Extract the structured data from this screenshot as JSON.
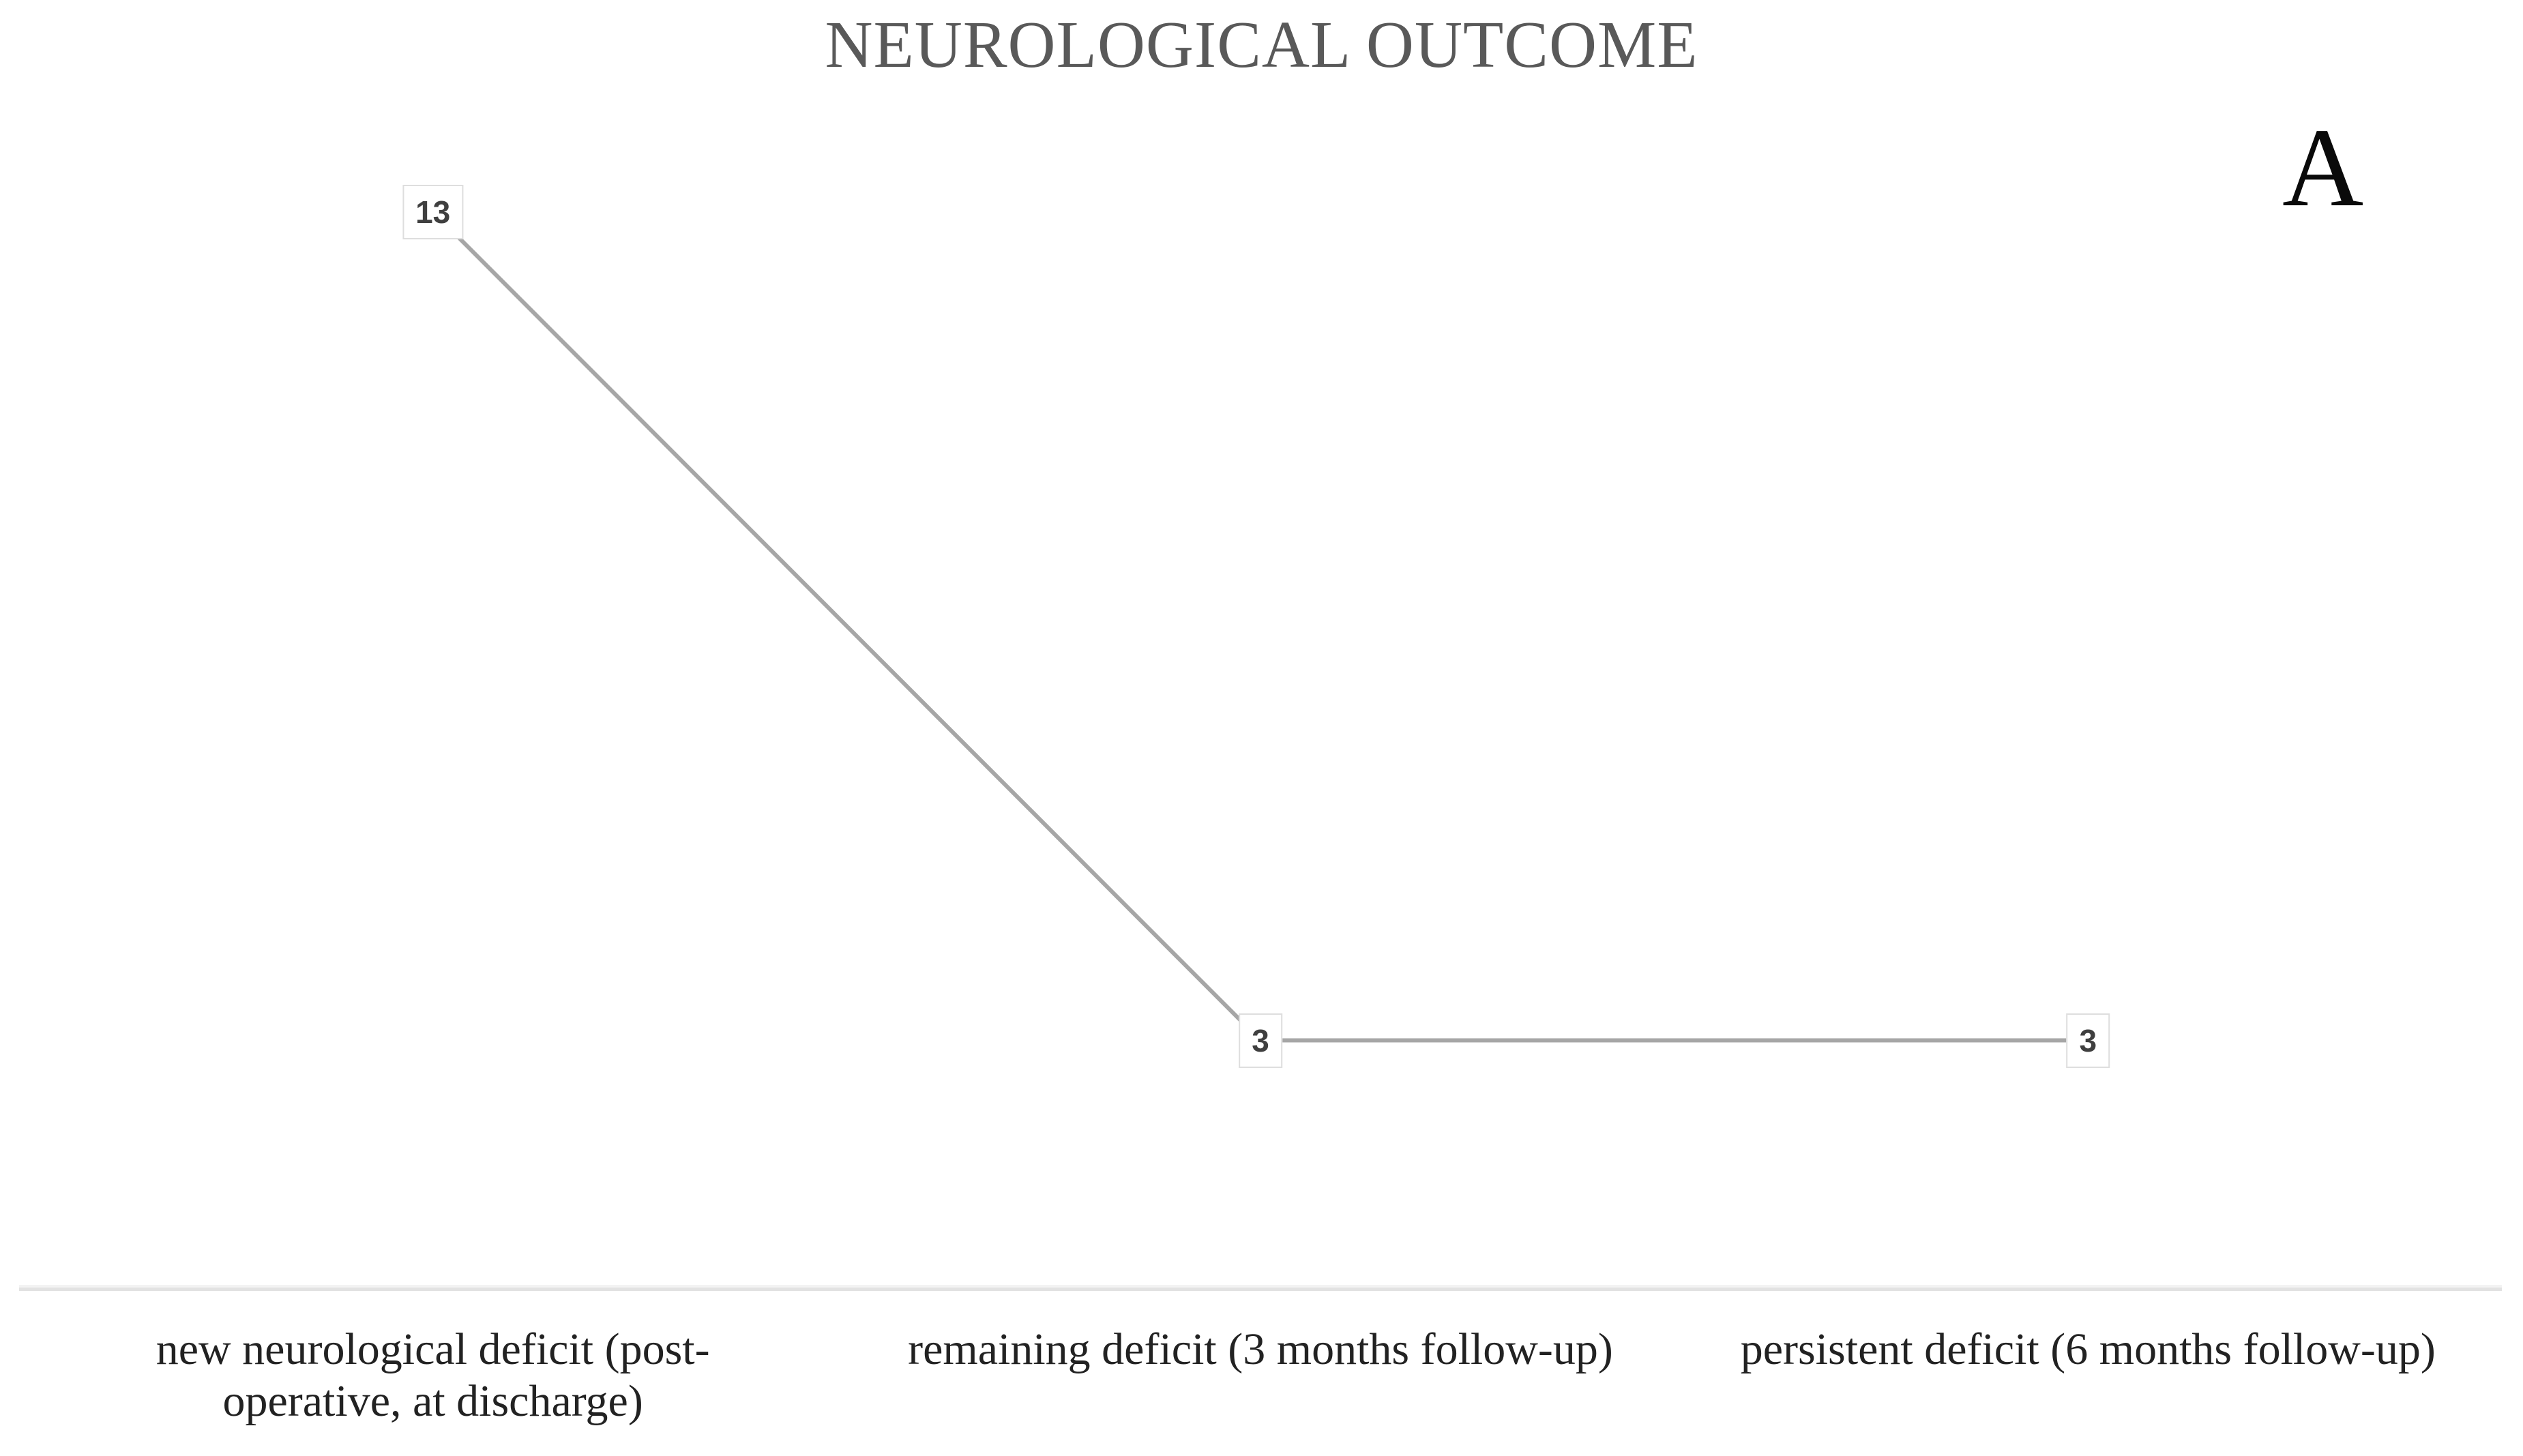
{
  "panel_label": "A",
  "chart_data": {
    "type": "line",
    "title": "NEUROLOGICAL OUTCOME",
    "categories": [
      "new neurological deficit (post-\noperative, at discharge)",
      "remaining deficit (3 months follow-up)",
      "persistent deficit (6 months follow-up)"
    ],
    "values": [
      13,
      3,
      3
    ],
    "data_labels": [
      "13",
      "3",
      "3"
    ],
    "ylim": [
      0,
      14
    ],
    "xlabel": "",
    "ylabel": "",
    "grid": false,
    "legend": false,
    "y_axis_visible": false,
    "colors": {
      "line": "#a6a6a6",
      "title_text": "#595959",
      "panel_label_text": "#0a0a0a",
      "data_label_text": "#3f3f3f",
      "data_label_border": "#dedede",
      "data_label_fill": "#ffffff",
      "axis_line": "#e2e2e2",
      "category_text": "#222222",
      "background": "#ffffff"
    }
  }
}
